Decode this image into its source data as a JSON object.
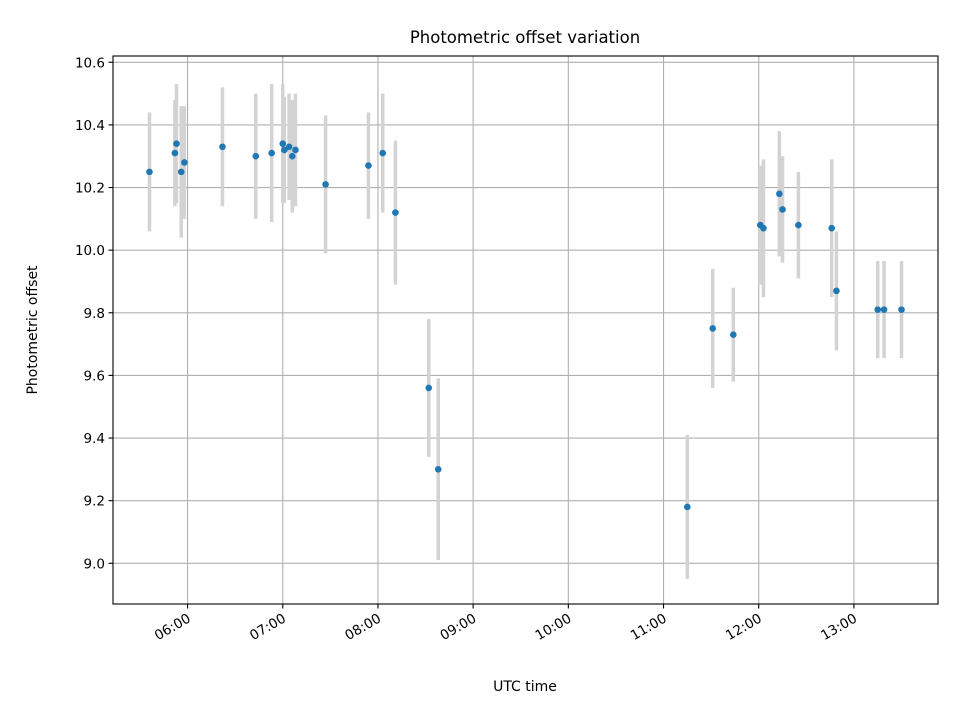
{
  "chart_data": {
    "type": "scatter",
    "title": "Photometric offset variation",
    "xlabel": "UTC time",
    "ylabel": "Photometric offset",
    "x_axis_kind": "time",
    "xlim": [
      "05:13",
      "13:53"
    ],
    "ylim": [
      8.87,
      10.62
    ],
    "grid": true,
    "x_ticks": [
      "06:00",
      "07:00",
      "08:00",
      "09:00",
      "10:00",
      "11:00",
      "12:00",
      "13:00"
    ],
    "y_ticks": [
      "9.0",
      "9.2",
      "9.4",
      "9.6",
      "9.8",
      "10.0",
      "10.2",
      "10.4",
      "10.6"
    ],
    "colors": {
      "marker": "#1f77b4",
      "error_bar": "#d3d3d3"
    },
    "series": [
      {
        "points": [
          {
            "x": "05:36",
            "y": 10.25,
            "err": 0.19
          },
          {
            "x": "05:52",
            "y": 10.31,
            "err": 0.17
          },
          {
            "x": "05:53",
            "y": 10.34,
            "err": 0.19
          },
          {
            "x": "05:56",
            "y": 10.25,
            "err": 0.21
          },
          {
            "x": "05:58",
            "y": 10.28,
            "err": 0.18
          },
          {
            "x": "06:22",
            "y": 10.33,
            "err": 0.19
          },
          {
            "x": "06:43",
            "y": 10.3,
            "err": 0.2
          },
          {
            "x": "06:53",
            "y": 10.31,
            "err": 0.22
          },
          {
            "x": "07:00",
            "y": 10.34,
            "err": 0.19
          },
          {
            "x": "07:01",
            "y": 10.32,
            "err": 0.17
          },
          {
            "x": "07:04",
            "y": 10.33,
            "err": 0.17
          },
          {
            "x": "07:06",
            "y": 10.3,
            "err": 0.18
          },
          {
            "x": "07:08",
            "y": 10.32,
            "err": 0.18
          },
          {
            "x": "07:27",
            "y": 10.21,
            "err": 0.22
          },
          {
            "x": "07:54",
            "y": 10.27,
            "err": 0.17
          },
          {
            "x": "08:03",
            "y": 10.31,
            "err": 0.19
          },
          {
            "x": "08:11",
            "y": 10.12,
            "err": 0.23
          },
          {
            "x": "08:32",
            "y": 9.56,
            "err": 0.22
          },
          {
            "x": "08:38",
            "y": 9.3,
            "err": 0.29
          },
          {
            "x": "11:15",
            "y": 9.18,
            "err": 0.23
          },
          {
            "x": "11:31",
            "y": 9.75,
            "err": 0.19
          },
          {
            "x": "11:44",
            "y": 9.73,
            "err": 0.15
          },
          {
            "x": "12:01",
            "y": 10.08,
            "err": 0.19
          },
          {
            "x": "12:03",
            "y": 10.07,
            "err": 0.22
          },
          {
            "x": "12:13",
            "y": 10.18,
            "err": 0.2
          },
          {
            "x": "12:15",
            "y": 10.13,
            "err": 0.17
          },
          {
            "x": "12:25",
            "y": 10.08,
            "err": 0.17
          },
          {
            "x": "12:46",
            "y": 10.07,
            "err": 0.22
          },
          {
            "x": "12:49",
            "y": 9.87,
            "err": 0.19
          },
          {
            "x": "13:15",
            "y": 9.81,
            "err": 0.155
          },
          {
            "x": "13:19",
            "y": 9.81,
            "err": 0.155
          },
          {
            "x": "13:30",
            "y": 9.81,
            "err": 0.155
          }
        ]
      }
    ]
  }
}
